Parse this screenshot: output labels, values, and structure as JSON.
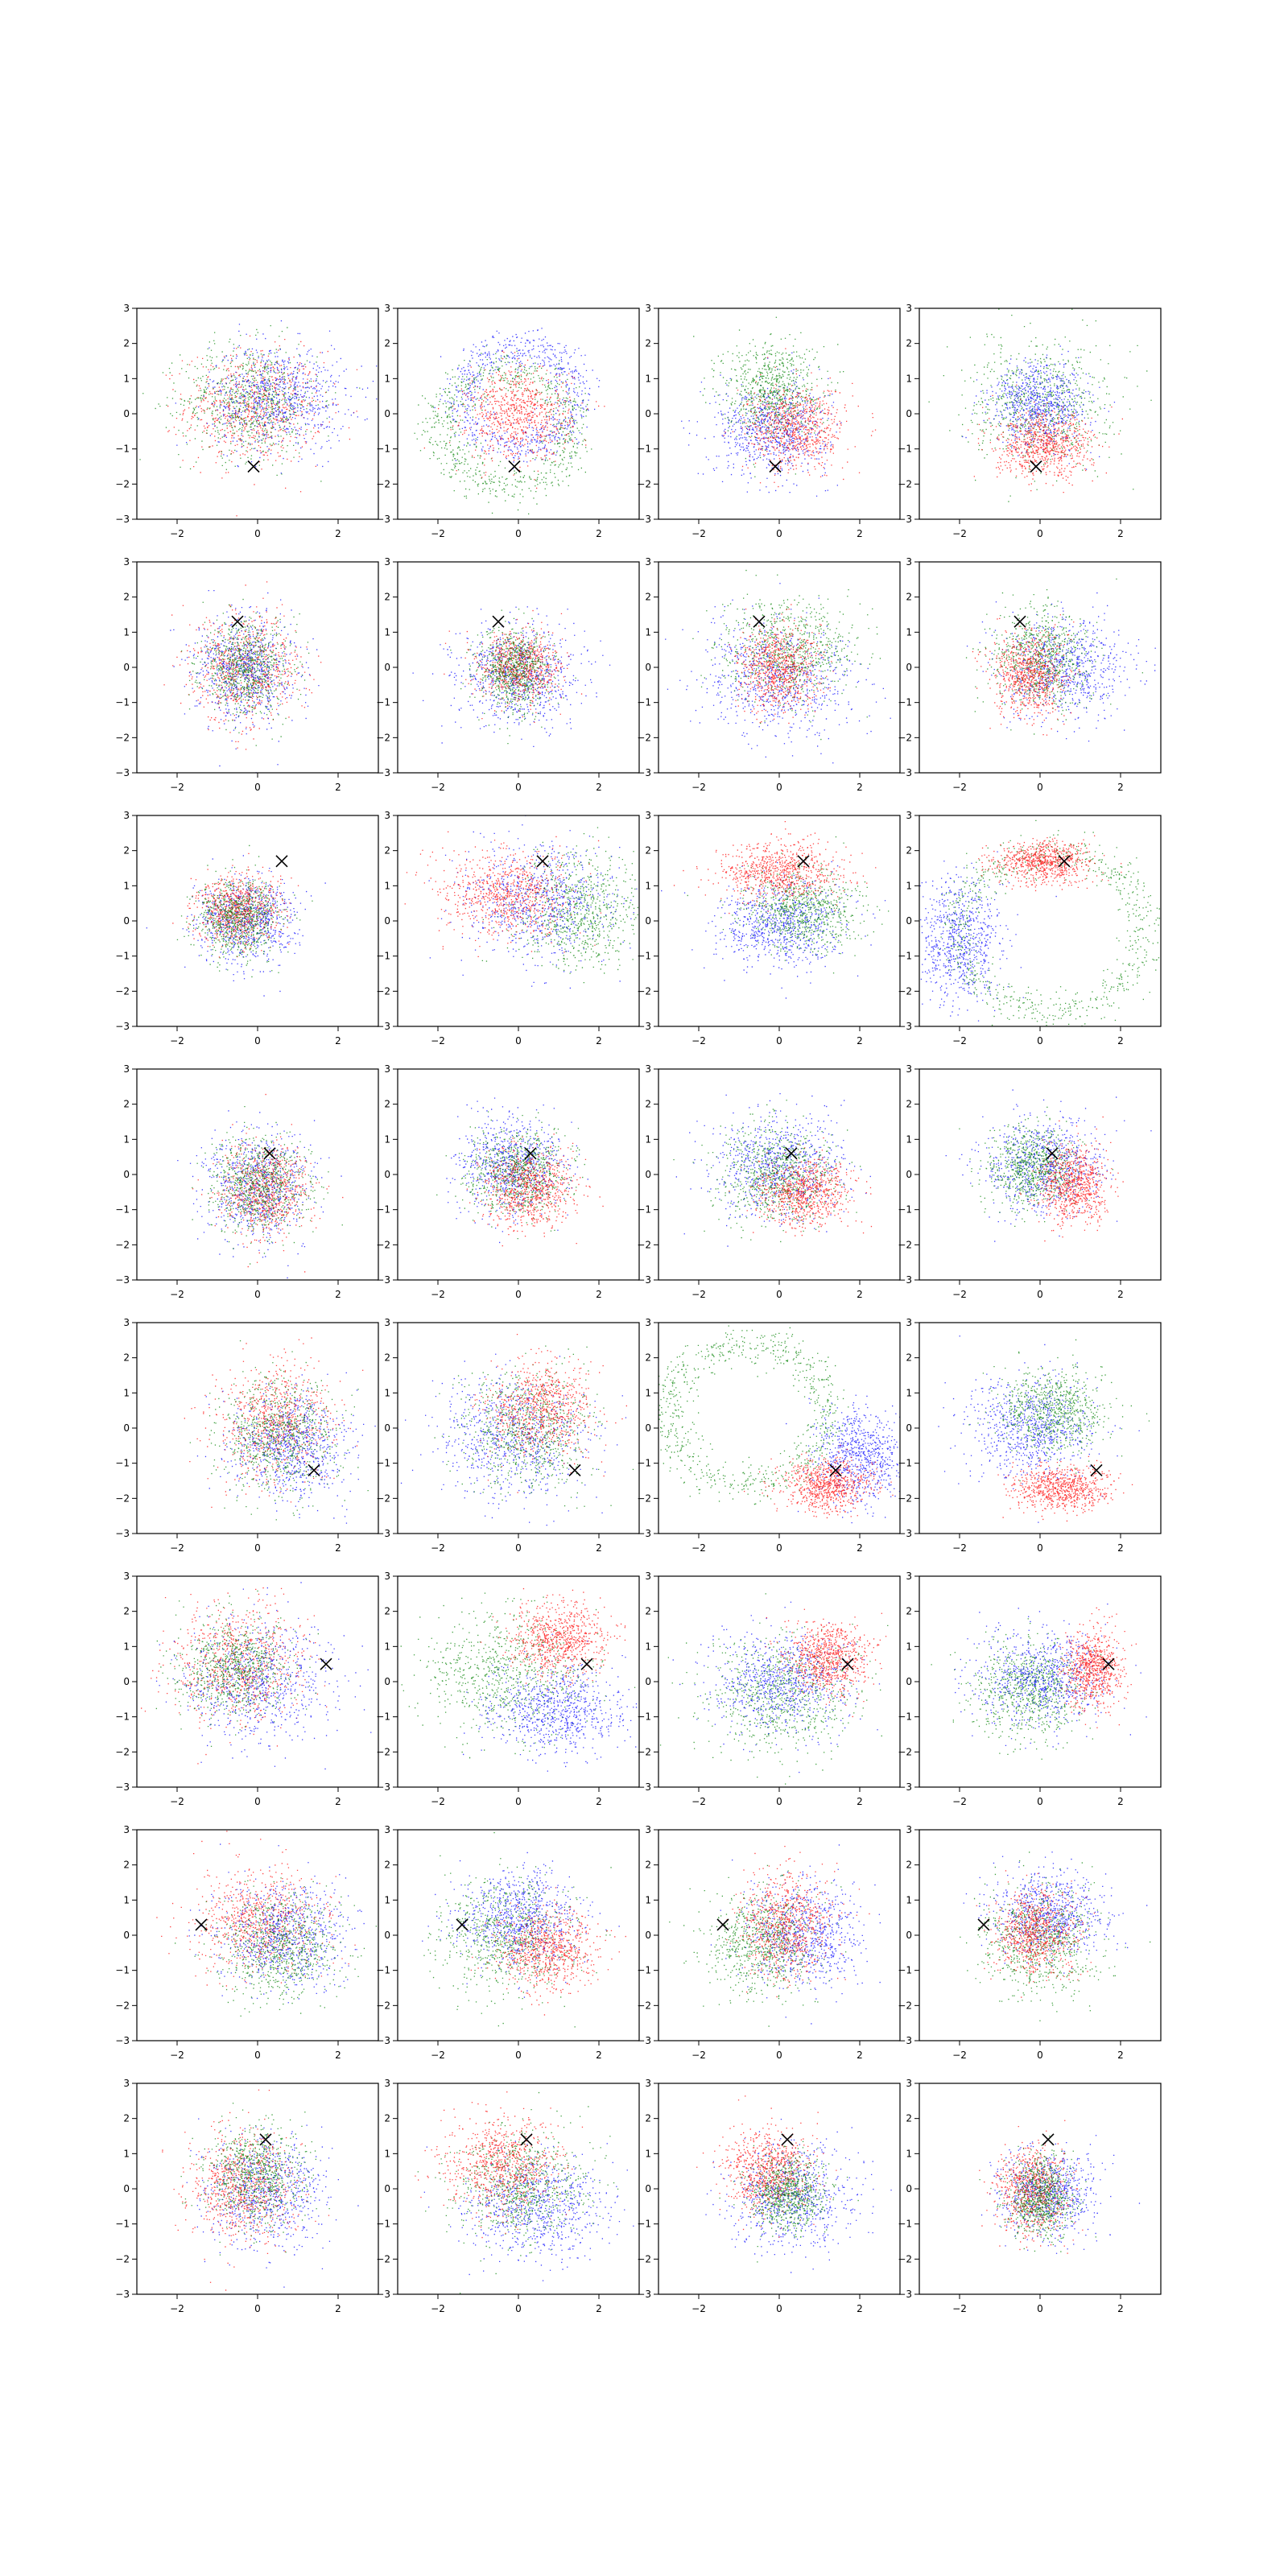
{
  "chart_data": {
    "type": "scatter",
    "grid": false,
    "layout": {
      "rows": 8,
      "cols": 4
    },
    "xlim": [
      -3,
      3
    ],
    "ylim": [
      -3,
      3
    ],
    "xticks": [
      -2,
      0,
      2
    ],
    "yticks": [
      -3,
      -2,
      -1,
      0,
      1,
      2,
      3
    ],
    "series_colors": {
      "red": "#ff0000",
      "green": "#008000",
      "blue": "#0000ff"
    },
    "marker": {
      "symbol": "x",
      "color": "#000000"
    },
    "points_per_series": 750,
    "panels": [
      {
        "row": 0,
        "col": 0,
        "marker": [
          -0.1,
          -1.5
        ],
        "series": [
          {
            "color": "red",
            "cx": -0.1,
            "cy": 0.2,
            "sx": 0.85,
            "sy": 0.8
          },
          {
            "color": "green",
            "cx": -0.2,
            "cy": 0.4,
            "sx": 0.85,
            "sy": 0.8
          },
          {
            "color": "blue",
            "cx": 0.5,
            "cy": 0.5,
            "sx": 0.85,
            "sy": 0.75
          }
        ]
      },
      {
        "row": 0,
        "col": 1,
        "marker": [
          -0.1,
          -1.5
        ],
        "series": [
          {
            "color": "blue",
            "ring": [
              0,
              0.5,
              1.4,
              0.55
            ]
          },
          {
            "color": "green",
            "ring": [
              -0.3,
              -0.4,
              1.6,
              0.6
            ]
          },
          {
            "color": "red",
            "cx": 0,
            "cy": 0,
            "sx": 0.65,
            "sy": 0.65
          }
        ]
      },
      {
        "row": 0,
        "col": 2,
        "marker": [
          -0.1,
          -1.5
        ],
        "series": [
          {
            "color": "blue",
            "cx": -0.2,
            "cy": -0.4,
            "sx": 0.7,
            "sy": 0.65
          },
          {
            "color": "green",
            "cx": -0.2,
            "cy": 0.7,
            "sx": 0.6,
            "sy": 0.7
          },
          {
            "color": "red",
            "cx": 0.4,
            "cy": -0.4,
            "sx": 0.6,
            "sy": 0.6
          }
        ]
      },
      {
        "row": 0,
        "col": 3,
        "marker": [
          -0.1,
          -1.5
        ],
        "series": [
          {
            "color": "green",
            "cx": 0,
            "cy": 0.3,
            "sx": 0.85,
            "sy": 0.85
          },
          {
            "color": "blue",
            "cx": 0,
            "cy": 0.3,
            "sx": 0.6,
            "sy": 0.6
          },
          {
            "color": "red",
            "cx": 0.1,
            "cy": -0.9,
            "sx": 0.6,
            "sy": 0.45
          }
        ]
      },
      {
        "row": 1,
        "col": 0,
        "marker": [
          -0.5,
          1.3
        ],
        "series": [
          {
            "color": "red",
            "cx": -0.3,
            "cy": 0,
            "sx": 0.65,
            "sy": 0.75
          },
          {
            "color": "blue",
            "cx": -0.3,
            "cy": 0,
            "sx": 0.6,
            "sy": 0.75
          },
          {
            "color": "green",
            "cx": -0.3,
            "cy": 0,
            "sx": 0.55,
            "sy": 0.65
          }
        ]
      },
      {
        "row": 1,
        "col": 1,
        "marker": [
          -0.5,
          1.3
        ],
        "series": [
          {
            "color": "blue",
            "cx": 0,
            "cy": -0.2,
            "sx": 0.75,
            "sy": 0.7
          },
          {
            "color": "red",
            "cx": 0,
            "cy": 0,
            "sx": 0.5,
            "sy": 0.5
          },
          {
            "color": "green",
            "cx": -0.1,
            "cy": -0.1,
            "sx": 0.45,
            "sy": 0.6
          }
        ]
      },
      {
        "row": 1,
        "col": 2,
        "marker": [
          -0.5,
          1.3
        ],
        "series": [
          {
            "color": "blue",
            "cx": 0,
            "cy": -0.3,
            "sx": 1.0,
            "sy": 0.8
          },
          {
            "color": "green",
            "cx": 0.2,
            "cy": 0.5,
            "sx": 0.8,
            "sy": 0.7
          },
          {
            "color": "red",
            "cx": 0,
            "cy": 0,
            "sx": 0.5,
            "sy": 0.6
          }
        ]
      },
      {
        "row": 1,
        "col": 3,
        "marker": [
          -0.5,
          1.3
        ],
        "series": [
          {
            "color": "blue",
            "cx": 0.6,
            "cy": 0,
            "sx": 0.8,
            "sy": 0.7
          },
          {
            "color": "green",
            "cx": 0,
            "cy": 0.3,
            "sx": 0.6,
            "sy": 0.7
          },
          {
            "color": "red",
            "cx": -0.3,
            "cy": -0.2,
            "sx": 0.45,
            "sy": 0.6
          }
        ]
      },
      {
        "row": 2,
        "col": 0,
        "marker": [
          0.6,
          1.7
        ],
        "series": [
          {
            "color": "blue",
            "cx": -0.3,
            "cy": 0,
            "sx": 0.6,
            "sy": 0.6
          },
          {
            "color": "red",
            "cx": -0.5,
            "cy": 0.3,
            "sx": 0.5,
            "sy": 0.5
          },
          {
            "color": "green",
            "cx": -0.5,
            "cy": 0.1,
            "sx": 0.5,
            "sy": 0.55
          }
        ]
      },
      {
        "row": 2,
        "col": 1,
        "marker": [
          0.6,
          1.7
        ],
        "series": [
          {
            "color": "green",
            "cx": 1.5,
            "cy": 0.3,
            "sx": 0.8,
            "sy": 0.8
          },
          {
            "color": "blue",
            "cx": 0.5,
            "cy": 0.6,
            "sx": 0.9,
            "sy": 0.8
          },
          {
            "color": "red",
            "cx": -0.3,
            "cy": 0.8,
            "sx": 0.8,
            "sy": 0.6
          }
        ]
      },
      {
        "row": 2,
        "col": 2,
        "marker": [
          0.6,
          1.7
        ],
        "series": [
          {
            "color": "blue",
            "cx": 0,
            "cy": -0.1,
            "sx": 0.8,
            "sy": 0.6
          },
          {
            "color": "green",
            "cx": 0.6,
            "cy": 0.3,
            "sx": 0.7,
            "sy": 0.6
          },
          {
            "color": "red",
            "cx": 0,
            "cy": 1.4,
            "sx": 0.7,
            "sy": 0.4
          }
        ]
      },
      {
        "row": 2,
        "col": 3,
        "marker": [
          0.6,
          1.7
        ],
        "series": [
          {
            "color": "blue",
            "cx": -2,
            "cy": -0.6,
            "sx": 0.55,
            "sy": 0.85
          },
          {
            "color": "green",
            "ring": [
              0.3,
              -0.3,
              2.3,
              0.55
            ]
          },
          {
            "color": "red",
            "cx": 0.1,
            "cy": 1.7,
            "sx": 0.6,
            "sy": 0.3
          }
        ]
      },
      {
        "row": 3,
        "col": 0,
        "marker": [
          0.3,
          0.6
        ],
        "series": [
          {
            "color": "blue",
            "cx": 0,
            "cy": -0.3,
            "sx": 0.65,
            "sy": 0.75
          },
          {
            "color": "red",
            "cx": 0.2,
            "cy": -0.4,
            "sx": 0.55,
            "sy": 0.65
          },
          {
            "color": "green",
            "cx": 0,
            "cy": -0.3,
            "sx": 0.6,
            "sy": 0.7
          }
        ]
      },
      {
        "row": 3,
        "col": 1,
        "marker": [
          0.3,
          0.6
        ],
        "series": [
          {
            "color": "blue",
            "cx": -0.2,
            "cy": 0.3,
            "sx": 0.65,
            "sy": 0.65
          },
          {
            "color": "green",
            "cx": 0,
            "cy": 0.1,
            "sx": 0.6,
            "sy": 0.6
          },
          {
            "color": "red",
            "cx": 0.3,
            "cy": -0.4,
            "sx": 0.55,
            "sy": 0.55
          }
        ]
      },
      {
        "row": 3,
        "col": 2,
        "marker": [
          0.3,
          0.6
        ],
        "series": [
          {
            "color": "blue",
            "cx": 0,
            "cy": 0.3,
            "sx": 0.8,
            "sy": 0.7
          },
          {
            "color": "green",
            "cx": -0.1,
            "cy": 0,
            "sx": 0.7,
            "sy": 0.7
          },
          {
            "color": "red",
            "cx": 0.6,
            "cy": -0.5,
            "sx": 0.55,
            "sy": 0.5
          }
        ]
      },
      {
        "row": 3,
        "col": 3,
        "marker": [
          0.3,
          0.6
        ],
        "series": [
          {
            "color": "blue",
            "cx": 0,
            "cy": 0.3,
            "sx": 0.7,
            "sy": 0.65
          },
          {
            "color": "green",
            "cx": -0.2,
            "cy": 0.2,
            "sx": 0.55,
            "sy": 0.55
          },
          {
            "color": "red",
            "cx": 0.8,
            "cy": -0.3,
            "sx": 0.45,
            "sy": 0.55
          }
        ]
      },
      {
        "row": 4,
        "col": 0,
        "marker": [
          1.4,
          -1.2
        ],
        "series": [
          {
            "color": "red",
            "cx": 0.4,
            "cy": 0.2,
            "sx": 0.7,
            "sy": 0.85
          },
          {
            "color": "blue",
            "cx": 0.8,
            "cy": -0.5,
            "sx": 0.75,
            "sy": 0.75
          },
          {
            "color": "green",
            "cx": 0.5,
            "cy": -0.2,
            "sx": 0.7,
            "sy": 0.8
          }
        ]
      },
      {
        "row": 4,
        "col": 1,
        "marker": [
          1.4,
          -1.2
        ],
        "series": [
          {
            "color": "blue",
            "cx": -0.2,
            "cy": -0.3,
            "sx": 0.95,
            "sy": 0.85
          },
          {
            "color": "green",
            "cx": 0.2,
            "cy": 0,
            "sx": 0.8,
            "sy": 0.8
          },
          {
            "color": "red",
            "cx": 0.5,
            "cy": 0.6,
            "sx": 0.65,
            "sy": 0.65
          }
        ]
      },
      {
        "row": 4,
        "col": 2,
        "marker": [
          1.4,
          -1.2
        ],
        "series": [
          {
            "color": "green",
            "ring": [
              -0.8,
              0.4,
              2.0,
              0.55
            ]
          },
          {
            "color": "blue",
            "cx": 2.0,
            "cy": -0.8,
            "sx": 0.55,
            "sy": 0.65
          },
          {
            "color": "red",
            "cx": 1.2,
            "cy": -1.6,
            "sx": 0.55,
            "sy": 0.35
          }
        ]
      },
      {
        "row": 4,
        "col": 3,
        "marker": [
          1.4,
          -1.2
        ],
        "series": [
          {
            "color": "blue",
            "cx": -0.3,
            "cy": 0,
            "sx": 0.8,
            "sy": 0.7
          },
          {
            "color": "green",
            "cx": 0.3,
            "cy": 0.5,
            "sx": 0.65,
            "sy": 0.6
          },
          {
            "color": "red",
            "cx": 0.5,
            "cy": -1.7,
            "sx": 0.6,
            "sy": 0.3
          }
        ]
      },
      {
        "row": 5,
        "col": 0,
        "marker": [
          1.7,
          0.5
        ],
        "series": [
          {
            "color": "red",
            "cx": -0.5,
            "cy": 0.5,
            "sx": 0.8,
            "sy": 0.8
          },
          {
            "color": "blue",
            "cx": 0,
            "cy": 0,
            "sx": 0.9,
            "sy": 0.85
          },
          {
            "color": "green",
            "cx": -0.6,
            "cy": 0.4,
            "sx": 0.7,
            "sy": 0.7
          }
        ]
      },
      {
        "row": 5,
        "col": 1,
        "marker": [
          1.7,
          0.5
        ],
        "series": [
          {
            "color": "green",
            "cx": -0.3,
            "cy": 0.2,
            "sx": 1.0,
            "sy": 0.9
          },
          {
            "color": "blue",
            "cx": 0.9,
            "cy": -0.8,
            "sx": 0.8,
            "sy": 0.65
          },
          {
            "color": "red",
            "cx": 1.0,
            "cy": 1.2,
            "sx": 0.6,
            "sy": 0.5
          }
        ]
      },
      {
        "row": 5,
        "col": 2,
        "marker": [
          1.7,
          0.5
        ],
        "series": [
          {
            "color": "green",
            "cx": 0,
            "cy": -0.3,
            "sx": 0.9,
            "sy": 0.8
          },
          {
            "color": "blue",
            "cx": 0,
            "cy": 0,
            "sx": 0.85,
            "sy": 0.75
          },
          {
            "color": "red",
            "cx": 1.2,
            "cy": 0.7,
            "sx": 0.5,
            "sy": 0.5
          }
        ]
      },
      {
        "row": 5,
        "col": 3,
        "marker": [
          1.7,
          0.5
        ],
        "series": [
          {
            "color": "green",
            "cx": -0.3,
            "cy": -0.2,
            "sx": 0.7,
            "sy": 0.7
          },
          {
            "color": "blue",
            "cx": 0.1,
            "cy": 0.1,
            "sx": 0.8,
            "sy": 0.7
          },
          {
            "color": "red",
            "cx": 1.3,
            "cy": 0.4,
            "sx": 0.35,
            "sy": 0.55
          }
        ]
      },
      {
        "row": 6,
        "col": 0,
        "marker": [
          -1.4,
          0.3
        ],
        "series": [
          {
            "color": "red",
            "cx": 0,
            "cy": 0.4,
            "sx": 0.8,
            "sy": 0.75
          },
          {
            "color": "blue",
            "cx": 0.7,
            "cy": 0,
            "sx": 0.8,
            "sy": 0.75
          },
          {
            "color": "green",
            "cx": 0.5,
            "cy": -0.3,
            "sx": 0.75,
            "sy": 0.75
          }
        ]
      },
      {
        "row": 6,
        "col": 1,
        "marker": [
          -1.4,
          0.3
        ],
        "series": [
          {
            "color": "green",
            "cx": -0.3,
            "cy": 0,
            "sx": 0.8,
            "sy": 0.8
          },
          {
            "color": "blue",
            "cx": 0,
            "cy": 0.5,
            "sx": 0.75,
            "sy": 0.7
          },
          {
            "color": "red",
            "cx": 0.7,
            "cy": -0.4,
            "sx": 0.6,
            "sy": 0.55
          }
        ]
      },
      {
        "row": 6,
        "col": 2,
        "marker": [
          -1.4,
          0.3
        ],
        "series": [
          {
            "color": "blue",
            "cx": 0.6,
            "cy": 0,
            "sx": 0.7,
            "sy": 0.75
          },
          {
            "color": "green",
            "cx": -0.4,
            "cy": -0.2,
            "sx": 0.7,
            "sy": 0.7
          },
          {
            "color": "red",
            "cx": 0.1,
            "cy": 0.3,
            "sx": 0.55,
            "sy": 0.75
          }
        ]
      },
      {
        "row": 6,
        "col": 3,
        "marker": [
          -1.4,
          0.3
        ],
        "series": [
          {
            "color": "blue",
            "cx": 0.2,
            "cy": 0.6,
            "sx": 0.7,
            "sy": 0.6
          },
          {
            "color": "green",
            "cx": 0,
            "cy": -0.2,
            "sx": 0.7,
            "sy": 0.75
          },
          {
            "color": "red",
            "cx": -0.1,
            "cy": 0.1,
            "sx": 0.5,
            "sy": 0.6
          }
        ]
      },
      {
        "row": 7,
        "col": 0,
        "marker": [
          0.2,
          1.4
        ],
        "series": [
          {
            "color": "blue",
            "cx": 0.2,
            "cy": -0.1,
            "sx": 0.75,
            "sy": 0.75
          },
          {
            "color": "red",
            "cx": -0.4,
            "cy": 0.1,
            "sx": 0.65,
            "sy": 0.75
          },
          {
            "color": "green",
            "cx": -0.1,
            "cy": 0.4,
            "sx": 0.6,
            "sy": 0.7
          }
        ]
      },
      {
        "row": 7,
        "col": 1,
        "marker": [
          0.2,
          1.4
        ],
        "series": [
          {
            "color": "blue",
            "cx": 0.5,
            "cy": -0.5,
            "sx": 0.85,
            "sy": 0.7
          },
          {
            "color": "green",
            "cx": 0,
            "cy": 0.1,
            "sx": 0.8,
            "sy": 0.8
          },
          {
            "color": "red",
            "cx": -0.4,
            "cy": 0.7,
            "sx": 0.7,
            "sy": 0.65
          }
        ]
      },
      {
        "row": 7,
        "col": 2,
        "marker": [
          0.2,
          1.4
        ],
        "series": [
          {
            "color": "blue",
            "cx": 0.3,
            "cy": -0.2,
            "sx": 0.75,
            "sy": 0.7
          },
          {
            "color": "red",
            "cx": -0.3,
            "cy": 0.5,
            "sx": 0.55,
            "sy": 0.6
          },
          {
            "color": "green",
            "cx": 0.2,
            "cy": -0.1,
            "sx": 0.45,
            "sy": 0.55
          }
        ]
      },
      {
        "row": 7,
        "col": 3,
        "marker": [
          0.2,
          1.4
        ],
        "series": [
          {
            "color": "blue",
            "cx": 0.2,
            "cy": -0.1,
            "sx": 0.6,
            "sy": 0.6
          },
          {
            "color": "red",
            "cx": -0.2,
            "cy": 0,
            "sx": 0.45,
            "sy": 0.6
          },
          {
            "color": "green",
            "cx": 0,
            "cy": -0.2,
            "sx": 0.4,
            "sy": 0.55
          }
        ]
      }
    ]
  }
}
